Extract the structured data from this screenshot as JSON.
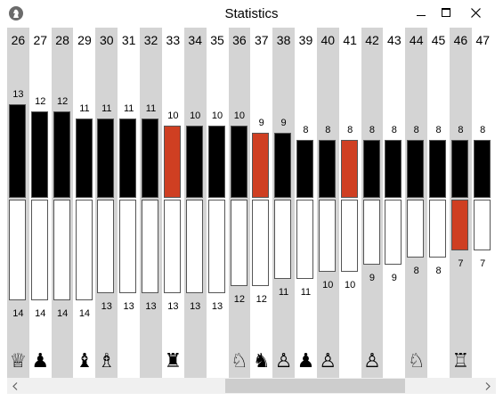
{
  "window": {
    "title": "Statistics"
  },
  "colors": {
    "red": "#cf3f22",
    "gray_column": "#d4d4d4",
    "black_bar": "#000000"
  },
  "columns": [
    {
      "move": "26",
      "top": 13,
      "bottom": 14,
      "piece": "♕",
      "piece_name": "white-queen-icon"
    },
    {
      "move": "27",
      "top": 12,
      "bottom": 14,
      "piece": "♟",
      "piece_name": "black-pawn-icon"
    },
    {
      "move": "28",
      "top": 12,
      "bottom": 14,
      "piece": "",
      "piece_name": ""
    },
    {
      "move": "29",
      "top": 11,
      "bottom": 14,
      "piece": "♝",
      "piece_name": "black-bishop-icon"
    },
    {
      "move": "30",
      "top": 11,
      "bottom": 13,
      "piece": "♗",
      "piece_name": "white-bishop-icon"
    },
    {
      "move": "31",
      "top": 11,
      "bottom": 13,
      "piece": "",
      "piece_name": ""
    },
    {
      "move": "32",
      "top": 11,
      "bottom": 13,
      "piece": "",
      "piece_name": ""
    },
    {
      "move": "33",
      "top": 10,
      "bottom": 13,
      "piece": "♜",
      "piece_name": "black-rook-icon",
      "top_red": true
    },
    {
      "move": "34",
      "top": 10,
      "bottom": 13,
      "piece": "",
      "piece_name": ""
    },
    {
      "move": "35",
      "top": 10,
      "bottom": 13,
      "piece": "",
      "piece_name": ""
    },
    {
      "move": "36",
      "top": 10,
      "bottom": 12,
      "piece": "♘",
      "piece_name": "white-knight-icon"
    },
    {
      "move": "37",
      "top": 9,
      "bottom": 12,
      "piece": "♞",
      "piece_name": "black-knight-icon",
      "top_red": true
    },
    {
      "move": "38",
      "top": 9,
      "bottom": 11,
      "piece": "♙",
      "piece_name": "white-pawn-icon"
    },
    {
      "move": "39",
      "top": 8,
      "bottom": 11,
      "piece": "♟",
      "piece_name": "black-pawn-icon"
    },
    {
      "move": "40",
      "top": 8,
      "bottom": 10,
      "piece": "♙",
      "piece_name": "white-pawn-icon"
    },
    {
      "move": "41",
      "top": 8,
      "bottom": 10,
      "piece": "",
      "piece_name": "",
      "top_red": true
    },
    {
      "move": "42",
      "top": 8,
      "bottom": 9,
      "piece": "♙",
      "piece_name": "white-pawn-icon"
    },
    {
      "move": "43",
      "top": 8,
      "bottom": 9,
      "piece": "",
      "piece_name": ""
    },
    {
      "move": "44",
      "top": 8,
      "bottom": 8,
      "piece": "♘",
      "piece_name": "white-knight-icon"
    },
    {
      "move": "45",
      "top": 8,
      "bottom": 8,
      "piece": "",
      "piece_name": ""
    },
    {
      "move": "46",
      "top": 8,
      "bottom": 7,
      "piece": "♖",
      "piece_name": "white-rook-icon",
      "bottom_red": true
    },
    {
      "move": "47",
      "top": 8,
      "bottom": 7,
      "piece": "",
      "piece_name": ""
    }
  ]
}
